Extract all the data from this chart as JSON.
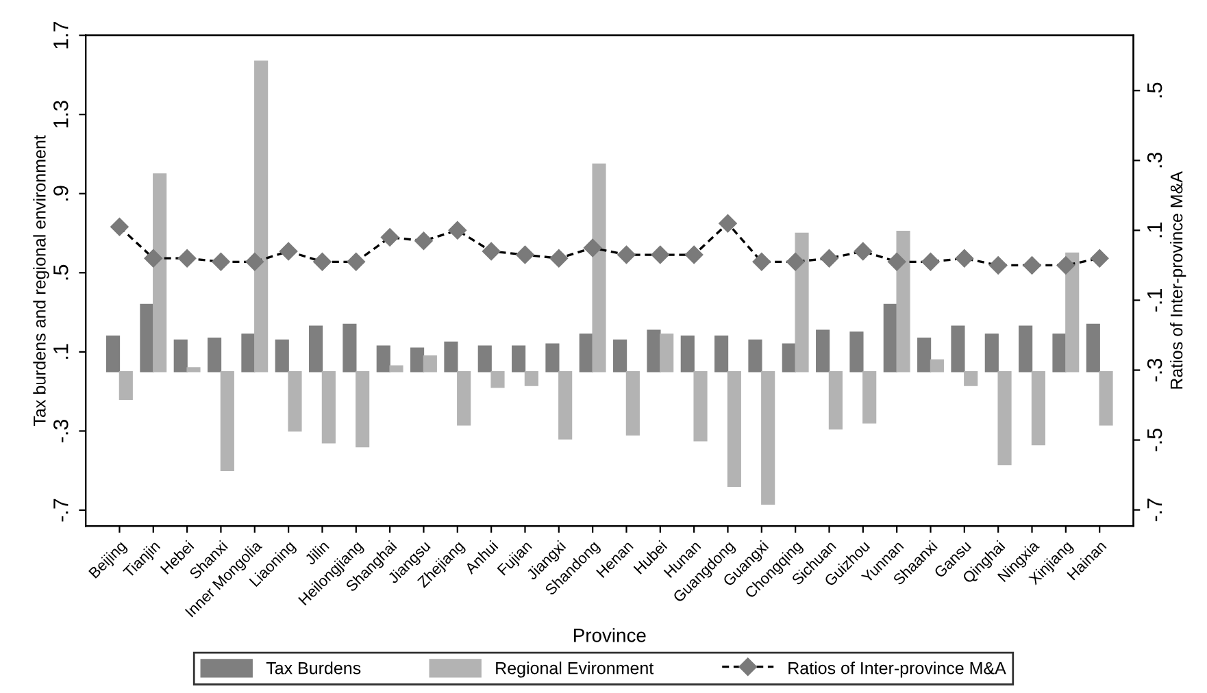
{
  "chart_data": {
    "type": "bar",
    "xlabel": "Province",
    "ylabel": "Tax burdens and regional environment",
    "y2label": "Ratios of Inter-province M&A",
    "categories": [
      "Beijing",
      "Tianjin",
      "Hebei",
      "Shanxi",
      "Inner Mongolia",
      "Liaoning",
      "Jilin",
      "Heilongjiang",
      "Shanghai",
      "Jiangsu",
      "Zhejiang",
      "Anhui",
      "Fujian",
      "Jiangxi",
      "Shandong",
      "Henan",
      "Hubei",
      "Hunan",
      "Guangdong",
      "Guangxi",
      "Chongqing",
      "Sichuan",
      "Guizhou",
      "Yunnan",
      "Shaanxi",
      "Gansu",
      "Qinghai",
      "Ningxia",
      "Xinjiang",
      "Hainan"
    ],
    "series": [
      {
        "name": "Tax Burdens",
        "color": "#7f7f7f",
        "values": [
          0.18,
          0.34,
          0.16,
          0.17,
          0.19,
          0.16,
          0.23,
          0.24,
          0.13,
          0.12,
          0.15,
          0.13,
          0.13,
          0.14,
          0.19,
          0.16,
          0.21,
          0.18,
          0.18,
          0.16,
          0.14,
          0.21,
          0.2,
          0.34,
          0.17,
          0.23,
          0.19,
          0.23,
          0.19,
          0.24
        ]
      },
      {
        "name": "Regional Evironment",
        "color": "#b3b3b3",
        "values": [
          -0.14,
          1.0,
          0.02,
          -0.5,
          1.57,
          -0.3,
          -0.36,
          -0.38,
          0.03,
          0.08,
          -0.27,
          -0.08,
          -0.07,
          -0.34,
          1.05,
          -0.32,
          0.19,
          -0.35,
          -0.58,
          -0.67,
          0.7,
          -0.29,
          -0.26,
          0.71,
          0.06,
          -0.07,
          -0.47,
          -0.37,
          0.6,
          -0.27
        ]
      },
      {
        "name": "Ratios of Inter-province M&A",
        "type": "line",
        "axis": "y2",
        "color": "#7a7a7a",
        "marker": "diamond",
        "line_style": "dashed",
        "values": [
          0.11,
          0.02,
          0.02,
          0.01,
          0.01,
          0.04,
          0.01,
          0.01,
          0.08,
          0.07,
          0.1,
          0.04,
          0.03,
          0.02,
          0.05,
          0.03,
          0.03,
          0.03,
          0.12,
          0.01,
          0.01,
          0.02,
          0.04,
          0.01,
          0.01,
          0.02,
          0.0,
          0.0,
          0.0,
          0.02
        ]
      }
    ],
    "ylim": [
      -0.78,
      1.7
    ],
    "yticks": [
      {
        "value": -0.7,
        "label": "-.7"
      },
      {
        "value": -0.3,
        "label": "-.3"
      },
      {
        "value": 0.1,
        "label": ".1"
      },
      {
        "value": 0.5,
        "label": ".5"
      },
      {
        "value": 0.9,
        "label": ".9"
      },
      {
        "value": 1.3,
        "label": "1.3"
      },
      {
        "value": 1.7,
        "label": "1.7"
      }
    ],
    "y2lim": [
      -0.746,
      0.658
    ],
    "y2ticks": [
      {
        "value": -0.7,
        "label": "-.7"
      },
      {
        "value": -0.5,
        "label": "-.5"
      },
      {
        "value": -0.3,
        "label": "-.3"
      },
      {
        "value": -0.1,
        "label": "-.1"
      },
      {
        "value": 0.1,
        "label": ".1"
      },
      {
        "value": 0.3,
        "label": ".3"
      },
      {
        "value": 0.5,
        "label": ".5"
      }
    ],
    "grid": false,
    "legend": "bottom"
  }
}
